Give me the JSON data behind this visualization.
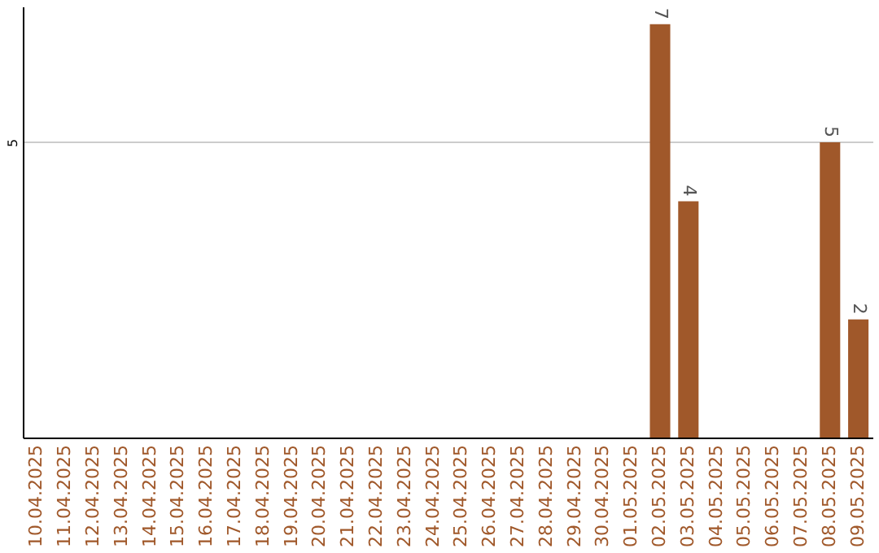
{
  "chart_data": {
    "type": "bar",
    "categories": [
      "10.04.2025",
      "11.04.2025",
      "12.04.2025",
      "13.04.2025",
      "14.04.2025",
      "15.04.2025",
      "16.04.2025",
      "17.04.2025",
      "18.04.2025",
      "19.04.2025",
      "20.04.2025",
      "21.04.2025",
      "22.04.2025",
      "23.04.2025",
      "24.04.2025",
      "25.04.2025",
      "26.04.2025",
      "27.04.2025",
      "28.04.2025",
      "29.04.2025",
      "30.04.2025",
      "01.05.2025",
      "02.05.2025",
      "03.05.2025",
      "04.05.2025",
      "05.05.2025",
      "06.05.2025",
      "07.05.2025",
      "08.05.2025",
      "09.05.2025"
    ],
    "values": [
      null,
      null,
      null,
      null,
      null,
      null,
      null,
      null,
      null,
      null,
      null,
      null,
      null,
      null,
      null,
      null,
      null,
      null,
      null,
      null,
      null,
      null,
      7,
      4,
      null,
      null,
      null,
      null,
      5,
      2
    ],
    "color": "#a0582a",
    "ylim": [
      0,
      7.3
    ],
    "yticks": [
      5
    ],
    "grid": "y",
    "data_labels": true
  }
}
